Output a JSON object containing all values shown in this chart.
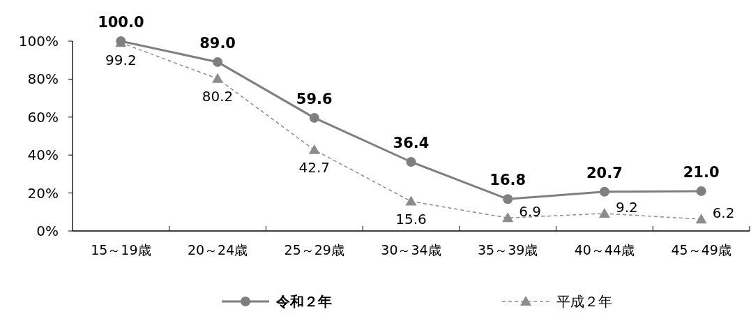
{
  "chart_data": {
    "type": "line",
    "categories": [
      "15～19歳",
      "20～24歳",
      "25～29歳",
      "30～34歳",
      "35～39歳",
      "40～44歳",
      "45～49歳"
    ],
    "series": [
      {
        "name": "令和２年",
        "color": "#7f7f7f",
        "marker": "circle",
        "line_style": "solid",
        "values": [
          100.0,
          89.0,
          59.6,
          36.4,
          16.8,
          20.7,
          21.0
        ],
        "value_labels": [
          "100.0",
          "89.0",
          "59.6",
          "36.4",
          "16.8",
          "20.7",
          "21.0"
        ]
      },
      {
        "name": "平成２年",
        "color": "#8c8c8c",
        "marker": "triangle",
        "line_style": "dashed",
        "values": [
          99.2,
          80.2,
          42.7,
          15.6,
          6.9,
          9.2,
          6.2
        ],
        "value_labels": [
          "99.2",
          "80.2",
          "42.7",
          "15.6",
          "6.9",
          "9.2",
          "6.2"
        ]
      }
    ],
    "ylim": [
      0,
      100
    ],
    "yticks": [
      {
        "value": 0,
        "label": "0%"
      },
      {
        "value": 20,
        "label": "20%"
      },
      {
        "value": 40,
        "label": "40%"
      },
      {
        "value": 60,
        "label": "60%"
      },
      {
        "value": 80,
        "label": "80%"
      },
      {
        "value": 100,
        "label": "100%"
      }
    ],
    "grid": false,
    "legend": "bottom"
  }
}
